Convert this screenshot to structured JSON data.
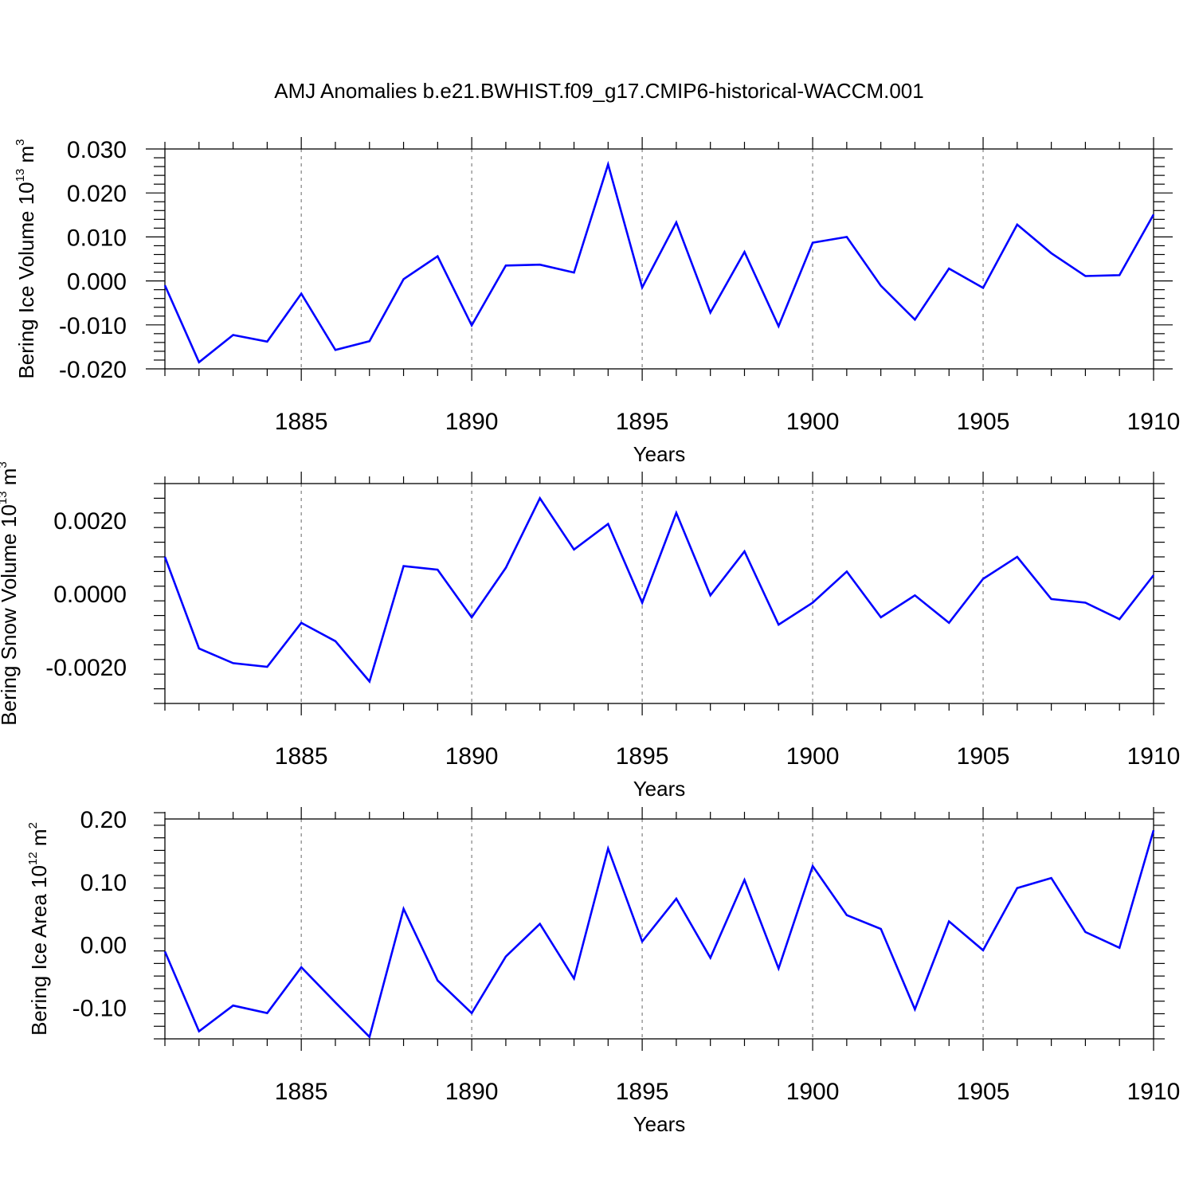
{
  "title": "AMJ Anomalies b.e21.BWHIST.f09_g17.CMIP6-historical-WACCM.001",
  "colors": {
    "series": "#0000ff",
    "axis": "#000000",
    "grid": "#808080"
  },
  "chart_data": [
    {
      "type": "line",
      "ylabel": {
        "main": "Bering Ice Volume 10",
        "exp": "13",
        "unit": " m",
        "unit_exp": "3"
      },
      "xlabel": "Years",
      "xlim": [
        1881,
        1910
      ],
      "ylim": [
        -0.02,
        0.03
      ],
      "xticks": [
        "1885",
        "1890",
        "1895",
        "1900",
        "1905",
        "1910"
      ],
      "yticks": [
        "0.030",
        "0.020",
        "0.010",
        "0.000",
        "-0.010",
        "-0.020"
      ],
      "grid": "vertical dashed at major x ticks",
      "x": [
        1881,
        1882,
        1883,
        1884,
        1885,
        1886,
        1887,
        1888,
        1889,
        1890,
        1891,
        1892,
        1893,
        1894,
        1895,
        1896,
        1897,
        1898,
        1899,
        1900,
        1901,
        1902,
        1903,
        1904,
        1905,
        1906,
        1907,
        1908,
        1909,
        1910
      ],
      "values": [
        -0.001,
        -0.0185,
        -0.0123,
        -0.0138,
        -0.0029,
        -0.0157,
        -0.0137,
        0.0004,
        0.0056,
        -0.0101,
        0.0035,
        0.0037,
        0.0019,
        0.0265,
        -0.0015,
        0.0133,
        -0.0072,
        0.0066,
        -0.0103,
        0.0087,
        0.01,
        -0.0011,
        -0.0088,
        0.0028,
        -0.0016,
        0.0128,
        0.0063,
        0.0011,
        0.0013,
        0.0151
      ]
    },
    {
      "type": "line",
      "ylabel": {
        "main": "Bering Snow Volume 10",
        "exp": "13",
        "unit": " m",
        "unit_exp": "3"
      },
      "xlabel": "Years",
      "xlim": [
        1881,
        1910
      ],
      "ylim": [
        -0.003,
        0.003
      ],
      "xticks": [
        "1885",
        "1890",
        "1895",
        "1900",
        "1905",
        "1910"
      ],
      "yticks": [
        "0.0020",
        "0.0000",
        "-0.0020"
      ],
      "grid": "vertical dashed at major x ticks",
      "x": [
        1881,
        1882,
        1883,
        1884,
        1885,
        1886,
        1887,
        1888,
        1889,
        1890,
        1891,
        1892,
        1893,
        1894,
        1895,
        1896,
        1897,
        1898,
        1899,
        1900,
        1901,
        1902,
        1903,
        1904,
        1905,
        1906,
        1907,
        1908,
        1909,
        1910
      ],
      "values": [
        0.001,
        -0.0015,
        -0.0019,
        -0.002,
        -0.0008,
        -0.0013,
        -0.0024,
        0.00075,
        0.00065,
        -0.00065,
        0.0007,
        0.0026,
        0.0012,
        0.0019,
        -0.00025,
        0.0022,
        -5e-05,
        0.00115,
        -0.00085,
        -0.00025,
        0.0006,
        -0.00065,
        -5e-05,
        -0.0008,
        0.0004,
        0.001,
        -0.00015,
        -0.00025,
        -0.0007,
        0.0005
      ]
    },
    {
      "type": "line",
      "ylabel": {
        "main": "Bering Ice Area 10",
        "exp": "12",
        "unit": " m",
        "unit_exp": "2"
      },
      "xlabel": "Years",
      "xlim": [
        1881,
        1910
      ],
      "ylim": [
        -0.15,
        0.2
      ],
      "xticks": [
        "1885",
        "1890",
        "1895",
        "1900",
        "1905",
        "1910"
      ],
      "yticks": [
        "0.20",
        "0.10",
        "0.00",
        "-0.10"
      ],
      "grid": "vertical dashed at major x ticks",
      "x": [
        1881,
        1882,
        1883,
        1884,
        1885,
        1886,
        1887,
        1888,
        1889,
        1890,
        1891,
        1892,
        1893,
        1894,
        1895,
        1896,
        1897,
        1898,
        1899,
        1900,
        1901,
        1902,
        1903,
        1904,
        1905,
        1906,
        1907,
        1908,
        1909,
        1910
      ],
      "values": [
        -0.011,
        -0.138,
        -0.097,
        -0.109,
        -0.036,
        -0.092,
        -0.147,
        0.057,
        -0.057,
        -0.109,
        -0.019,
        0.033,
        -0.054,
        0.153,
        0.005,
        0.073,
        -0.021,
        0.103,
        -0.038,
        0.125,
        0.047,
        0.025,
        -0.103,
        0.037,
        -0.009,
        0.09,
        0.106,
        0.02,
        -0.005,
        0.182
      ]
    }
  ]
}
